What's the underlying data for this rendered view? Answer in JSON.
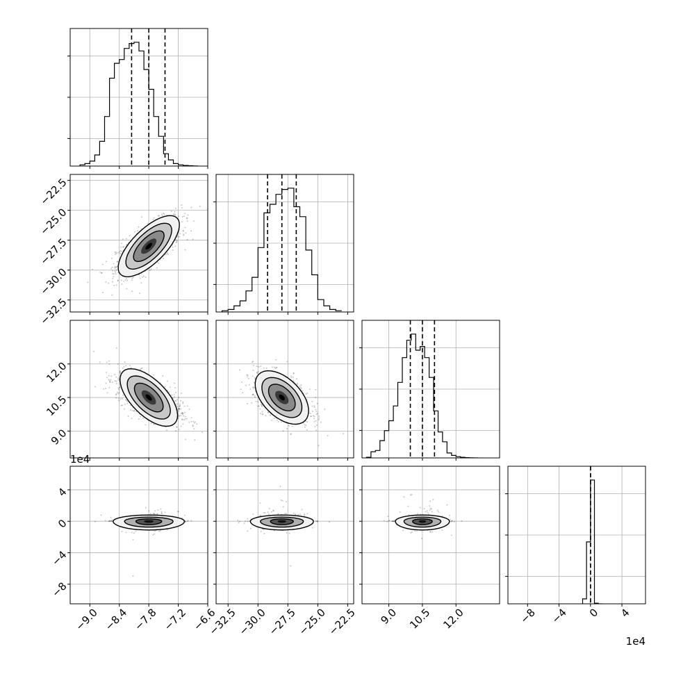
{
  "chart_data": {
    "type": "corner",
    "description_note": "",
    "variables": [
      {
        "range": [
          -9.4,
          -6.6
        ],
        "ticks": [
          -9.0,
          -8.4,
          -7.8,
          -7.2,
          -6.6
        ],
        "tick_labels": [
          "−9.0",
          "−8.4",
          "−7.8",
          "−7.2",
          "−6.6"
        ],
        "quantiles": [
          -8.15,
          -7.8,
          -7.47
        ],
        "median": -7.8,
        "sd": 0.33
      },
      {
        "range": [
          -33.5,
          -22.0
        ],
        "ticks": [
          -32.5,
          -30.0,
          -27.5,
          -25.0,
          -22.5
        ],
        "tick_labels": [
          "−32.5",
          "−30.0",
          "−27.5",
          "−25.0",
          "−22.5"
        ],
        "quantiles": [
          -29.2,
          -28.0,
          -26.8
        ],
        "median": -28.0,
        "sd": 1.2
      },
      {
        "range": [
          7.8,
          13.95
        ],
        "ticks": [
          9.0,
          10.5,
          12.0
        ],
        "tick_labels": [
          "9.0",
          "10.5",
          "12.0"
        ],
        "quantiles": [
          9.96,
          10.5,
          11.04
        ],
        "median": 10.5,
        "sd": 0.55
      },
      {
        "range": [
          -105000,
          70000
        ],
        "ticks": [
          -80000,
          -40000,
          0,
          40000
        ],
        "tick_labels": [
          "−8",
          "−4",
          "0",
          "4"
        ],
        "quantiles": [
          0,
          0,
          0
        ],
        "median": 0,
        "sd": 5000
      }
    ],
    "diagonal_histograms": [
      {
        "edges": [
          -9.2,
          -9.1,
          -9.0,
          -8.9,
          -8.8,
          -8.7,
          -8.6,
          -8.5,
          -8.4,
          -8.3,
          -8.2,
          -8.1,
          -8.0,
          -7.9,
          -7.8,
          -7.7,
          -7.6,
          -7.5,
          -7.4,
          -7.3,
          -7.2,
          -7.1,
          -7.0,
          -6.9,
          -6.8
        ],
        "heights": [
          0.01,
          0.02,
          0.04,
          0.09,
          0.2,
          0.4,
          0.71,
          0.83,
          0.86,
          0.95,
          0.99,
          1.0,
          0.93,
          0.78,
          0.62,
          0.4,
          0.24,
          0.1,
          0.05,
          0.02,
          0.01,
          0.005,
          0.003,
          0.001
        ]
      },
      {
        "edges": [
          -33.0,
          -32.5,
          -32.0,
          -31.5,
          -31.0,
          -30.5,
          -30.0,
          -29.5,
          -29.0,
          -28.5,
          -28.0,
          -27.5,
          -27.0,
          -26.5,
          -26.0,
          -25.5,
          -25.0,
          -24.5,
          -24.0,
          -23.5,
          -23.0
        ],
        "heights": [
          0.01,
          0.02,
          0.05,
          0.09,
          0.17,
          0.28,
          0.52,
          0.8,
          0.87,
          0.95,
          0.99,
          1.0,
          0.85,
          0.77,
          0.5,
          0.3,
          0.1,
          0.05,
          0.02,
          0.01
        ]
      },
      {
        "edges": [
          8.0,
          8.2,
          8.4,
          8.6,
          8.8,
          9.0,
          9.2,
          9.4,
          9.6,
          9.8,
          10.0,
          10.2,
          10.4,
          10.6,
          10.8,
          11.0,
          11.2,
          11.4,
          11.6,
          11.8,
          12.0,
          12.2,
          12.4,
          12.6,
          12.8,
          13.0
        ],
        "heights": [
          0.005,
          0.05,
          0.06,
          0.14,
          0.22,
          0.3,
          0.42,
          0.61,
          0.81,
          0.95,
          1.0,
          0.87,
          0.9,
          0.81,
          0.65,
          0.38,
          0.21,
          0.13,
          0.04,
          0.02,
          0.01,
          0.005,
          0.002,
          0.001,
          0.0
        ]
      },
      {
        "edges": [
          -10000,
          -5000,
          0,
          5000,
          10000,
          15000
        ],
        "heights": [
          0.04,
          0.5,
          1.0,
          0.005,
          0.0
        ]
      }
    ],
    "pairs": [
      {
        "row": 1,
        "col": 0,
        "corr": 0.7
      },
      {
        "row": 2,
        "col": 0,
        "corr": -0.62
      },
      {
        "row": 2,
        "col": 1,
        "corr": -0.5
      },
      {
        "row": 3,
        "col": 0,
        "corr": 0.0
      },
      {
        "row": 3,
        "col": 1,
        "corr": 0.0
      },
      {
        "row": 3,
        "col": 2,
        "corr": 0.0
      }
    ],
    "offset_text": {
      "y_last_row": "1e4",
      "x_last_col": "1e4"
    },
    "grid": true,
    "quantile_line_style": "dashed"
  }
}
